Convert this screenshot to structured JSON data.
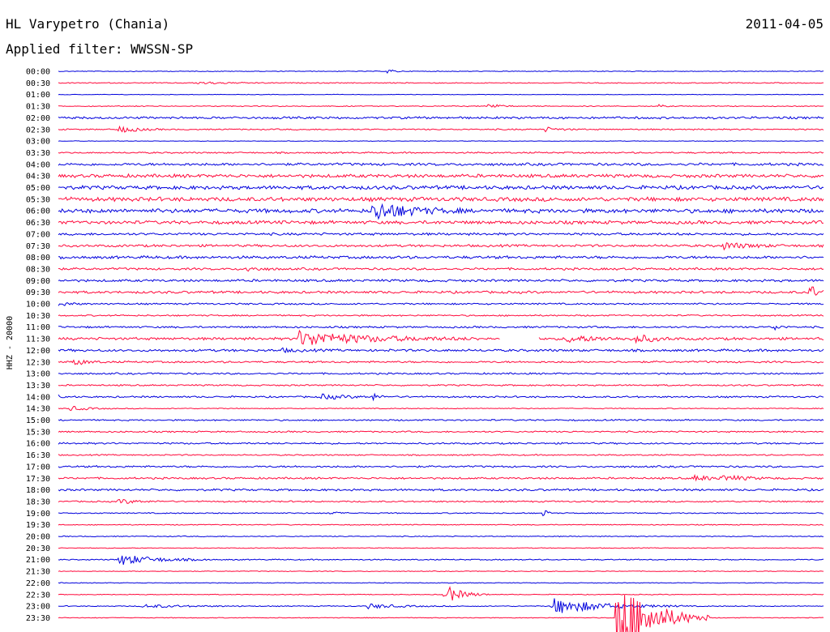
{
  "header": {
    "station": "HL Varypetro (Chania)",
    "filter": "Applied filter: WWSSN-SP",
    "date": "2011-04-05"
  },
  "chart_data": {
    "type": "line",
    "title": "HL Varypetro (Chania)",
    "subtitle": "Applied filter: WWSSN-SP",
    "ylabel": "HHZ - 20000",
    "xlabel": "",
    "colors": [
      "#0000dd",
      "#ff0a3c"
    ],
    "rows": [
      "00:00",
      "00:30",
      "01:00",
      "01:30",
      "02:00",
      "02:30",
      "03:00",
      "03:30",
      "04:00",
      "04:30",
      "05:00",
      "05:30",
      "06:00",
      "06:30",
      "07:00",
      "07:30",
      "08:00",
      "08:30",
      "09:00",
      "09:30",
      "10:00",
      "10:30",
      "11:00",
      "11:30",
      "12:00",
      "12:30",
      "13:00",
      "13:30",
      "14:00",
      "14:30",
      "15:00",
      "15:30",
      "16:00",
      "16:30",
      "17:00",
      "17:30",
      "18:00",
      "18:30",
      "19:00",
      "19:30",
      "20:00",
      "20:30",
      "21:00",
      "21:30",
      "22:00",
      "22:30",
      "23:00",
      "23:30"
    ],
    "row_noise": [
      0.4,
      0.5,
      0.3,
      0.5,
      1.2,
      0.7,
      0.3,
      0.8,
      1.4,
      1.8,
      2.0,
      2.2,
      2.2,
      1.8,
      1.3,
      1.3,
      1.5,
      1.2,
      1.3,
      1.3,
      0.9,
      0.8,
      1.0,
      1.4,
      1.3,
      1.0,
      0.9,
      0.8,
      0.9,
      0.5,
      0.8,
      0.8,
      0.9,
      0.7,
      1.0,
      1.0,
      1.1,
      0.8,
      0.6,
      0.5,
      0.5,
      0.4,
      0.6,
      0.4,
      0.4,
      0.4,
      0.5,
      0.4
    ],
    "events": [
      {
        "row": 0,
        "t": 0.43,
        "amp": 3,
        "dur": 0.008
      },
      {
        "row": 1,
        "t": 0.182,
        "amp": 1.5,
        "dur": 0.035
      },
      {
        "row": 3,
        "t": 0.56,
        "amp": 5,
        "dur": 0.012
      },
      {
        "row": 3,
        "t": 0.785,
        "amp": 2,
        "dur": 0.005
      },
      {
        "row": 5,
        "t": 0.08,
        "amp": 4,
        "dur": 0.02
      },
      {
        "row": 5,
        "t": 0.635,
        "amp": 3,
        "dur": 0.015
      },
      {
        "row": 12,
        "t": 0.412,
        "amp": 12,
        "dur": 0.04
      },
      {
        "row": 15,
        "t": 0.87,
        "amp": 4,
        "dur": 0.03
      },
      {
        "row": 17,
        "t": 0.245,
        "amp": 3,
        "dur": 0.015
      },
      {
        "row": 19,
        "t": 0.982,
        "amp": 11,
        "dur": 0.008
      },
      {
        "row": 20,
        "t": 0.002,
        "amp": 4,
        "dur": 0.01
      },
      {
        "row": 22,
        "t": 0.935,
        "amp": 5,
        "dur": 0.006
      },
      {
        "row": 23,
        "t": 0.315,
        "amp": 9,
        "dur": 0.08
      },
      {
        "row": 23,
        "t": 0.665,
        "amp": 4,
        "dur": 0.04
      },
      {
        "row": 23,
        "t": 0.755,
        "amp": 5,
        "dur": 0.02
      },
      {
        "row": 24,
        "t": 0.29,
        "amp": 2,
        "dur": 0.02
      },
      {
        "row": 25,
        "t": 0.02,
        "amp": 4,
        "dur": 0.015
      },
      {
        "row": 28,
        "t": 0.0,
        "amp": 5,
        "dur": 0.004
      },
      {
        "row": 28,
        "t": 0.345,
        "amp": 3,
        "dur": 0.03
      },
      {
        "row": 28,
        "t": 0.41,
        "amp": 5,
        "dur": 0.006
      },
      {
        "row": 29,
        "t": 0.015,
        "amp": 3,
        "dur": 0.02
      },
      {
        "row": 35,
        "t": 0.83,
        "amp": 3,
        "dur": 0.03
      },
      {
        "row": 35,
        "t": 0.87,
        "amp": 3,
        "dur": 0.025
      },
      {
        "row": 37,
        "t": 0.08,
        "amp": 3,
        "dur": 0.02
      },
      {
        "row": 38,
        "t": 0.355,
        "amp": 2,
        "dur": 0.01
      },
      {
        "row": 38,
        "t": 0.635,
        "amp": 6,
        "dur": 0.004
      },
      {
        "row": 42,
        "t": 0.08,
        "amp": 7,
        "dur": 0.04
      },
      {
        "row": 45,
        "t": 0.505,
        "amp": 12,
        "dur": 0.02
      },
      {
        "row": 46,
        "t": 0.11,
        "amp": 2,
        "dur": 0.05
      },
      {
        "row": 46,
        "t": 0.405,
        "amp": 3,
        "dur": 0.035
      },
      {
        "row": 46,
        "t": 0.645,
        "amp": 10,
        "dur": 0.06
      },
      {
        "row": 47,
        "t": 0.73,
        "amp": 55,
        "dur": 0.04
      }
    ],
    "gaps": [
      {
        "row": 23,
        "t_start": 0.578,
        "t_end": 0.628
      }
    ]
  }
}
